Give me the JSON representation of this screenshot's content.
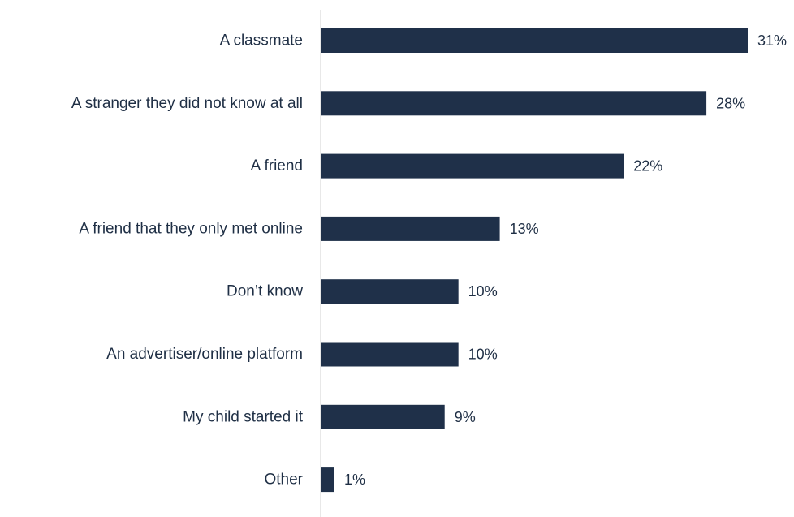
{
  "chart_data": {
    "type": "bar",
    "orientation": "horizontal",
    "title": "",
    "xlabel": "",
    "ylabel": "",
    "categories": [
      "A classmate",
      "A stranger they did not know at all",
      "A friend",
      "A friend that they only met online",
      "Don’t know",
      "An advertiser/online platform",
      "My child started it",
      "Other"
    ],
    "values": [
      31,
      28,
      22,
      13,
      10,
      10,
      9,
      1
    ],
    "value_labels": [
      "31%",
      "28%",
      "22%",
      "13%",
      "10%",
      "10%",
      "9%",
      "1%"
    ],
    "xlim": [
      0,
      31
    ],
    "grid": false,
    "legend": "none",
    "bar_color": "#1f3049",
    "text_color": "#1f2f45",
    "axis_color": "#d0d0d0"
  }
}
